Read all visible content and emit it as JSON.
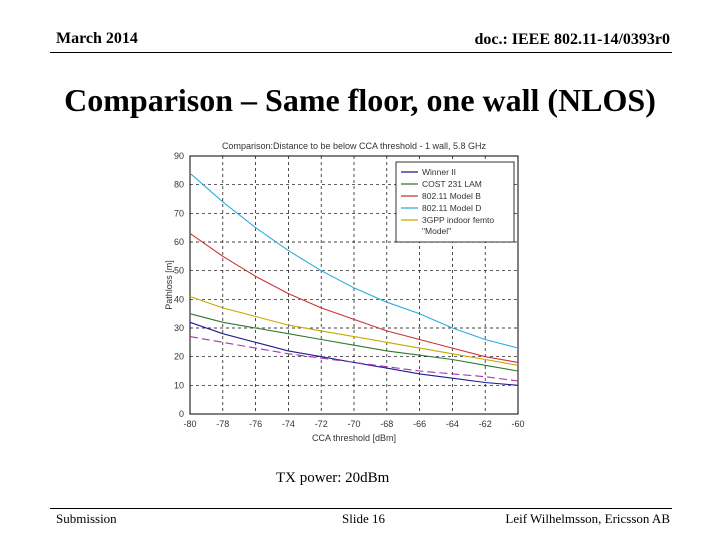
{
  "header": {
    "date": "March 2014",
    "doc": "doc.: IEEE 802.11-14/0393r0"
  },
  "slide_title": "Comparison – Same floor, one wall (NLOS)",
  "caption": "TX power: 20dBm",
  "footer": {
    "left": "Submission",
    "center": "Slide 16",
    "right": "Leif Wilhelmsson, Ericsson AB"
  },
  "chart_data": {
    "type": "line",
    "title": "Comparison:Distance to be below CCA threshold - 1 wall, 5.8 GHz",
    "xlabel": "CCA threshold [dBm]",
    "ylabel": "Pathloss [m]",
    "xlim": [
      -80,
      -60
    ],
    "ylim": [
      0,
      90
    ],
    "xticks": [
      "-80",
      "-78",
      "-76",
      "-74",
      "-72",
      "-70",
      "-68",
      "-66",
      "-64",
      "-62",
      "-60"
    ],
    "yticks": [
      "0",
      "10",
      "20",
      "30",
      "40",
      "50",
      "60",
      "70",
      "80",
      "90"
    ],
    "grid": true,
    "legend_position": "top-right",
    "series": [
      {
        "name": "Winner II",
        "color": "#1f1f8f",
        "dash": "solid",
        "x": [
          -80,
          -78,
          -76,
          -74,
          -72,
          -70,
          -68,
          -66,
          -64,
          -62,
          -60
        ],
        "y": [
          32,
          28,
          25,
          22,
          20,
          18,
          16,
          14,
          12.5,
          11,
          10
        ]
      },
      {
        "name": "COST 231 LAM",
        "color": "#2f7a2f",
        "dash": "solid",
        "x": [
          -80,
          -78,
          -76,
          -74,
          -72,
          -70,
          -68,
          -66,
          -64,
          -62,
          -60
        ],
        "y": [
          35,
          32,
          30,
          28,
          26,
          24,
          22,
          20.5,
          19,
          17,
          15
        ]
      },
      {
        "name": "802.11 Model B",
        "color": "#cc3333",
        "dash": "solid",
        "x": [
          -80,
          -78,
          -76,
          -74,
          -72,
          -70,
          -68,
          -66,
          -64,
          -62,
          -60
        ],
        "y": [
          63,
          55,
          48,
          42,
          37,
          33,
          29,
          26,
          23,
          20,
          18
        ]
      },
      {
        "name": "802.11 Model D",
        "color": "#2aaee0",
        "dash": "solid",
        "x": [
          -80,
          -78,
          -76,
          -74,
          -72,
          -70,
          -68,
          -66,
          -64,
          -62,
          -60
        ],
        "y": [
          84,
          74,
          65,
          57,
          50,
          44,
          39,
          35,
          30,
          26,
          23
        ]
      },
      {
        "name": "3GPP indoor femto \"Model\"",
        "color": "#c9a800",
        "dash": "solid",
        "x": [
          -80,
          -78,
          -76,
          -74,
          -72,
          -70,
          -68,
          -66,
          -64,
          -62,
          -60
        ],
        "y": [
          41,
          37,
          34,
          31,
          29,
          27,
          25,
          23,
          21,
          19,
          17
        ]
      },
      {
        "name": "",
        "color": "#b030b0",
        "dash": "dashed",
        "x": [
          -80,
          -78,
          -76,
          -74,
          -72,
          -70,
          -68,
          -66,
          -64,
          -62,
          -60
        ],
        "y": [
          27,
          25,
          23,
          21,
          19.5,
          18,
          16.5,
          15,
          14,
          13,
          11.5
        ]
      }
    ]
  }
}
